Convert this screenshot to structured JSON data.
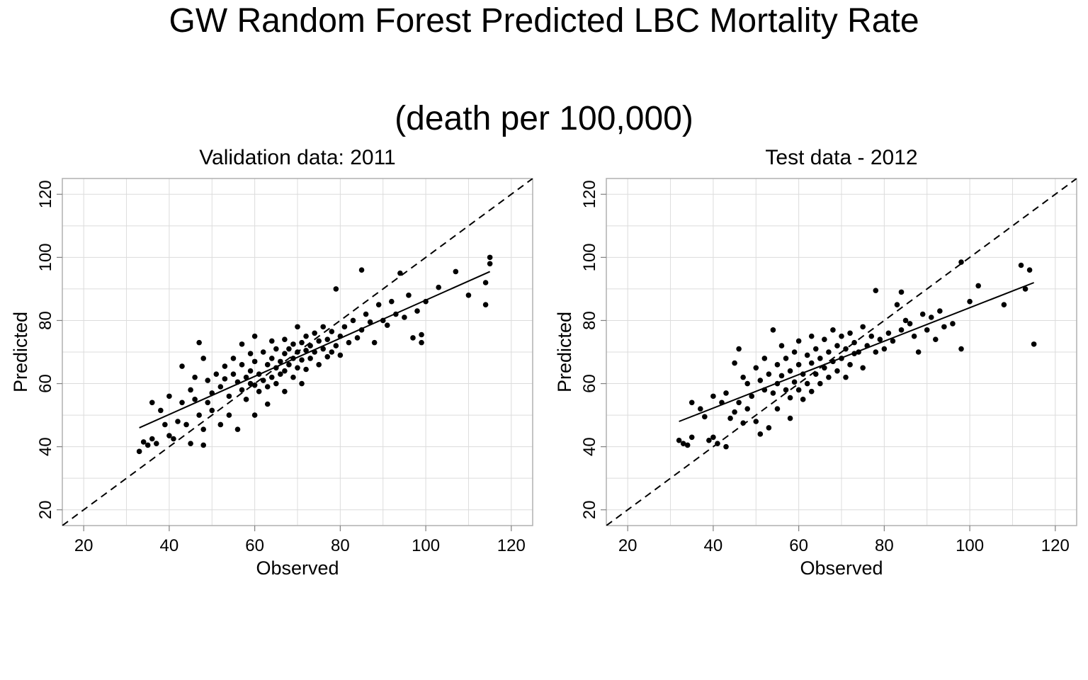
{
  "title": "GW Random Forest Predicted LBC Mortality Rate",
  "subtitle": "(death per 100,000)",
  "chart_data": [
    {
      "type": "scatter",
      "title": "Validation data: 2011",
      "xlabel": "Observed",
      "ylabel": "Predicted",
      "xlim": [
        15,
        125
      ],
      "ylim": [
        15,
        125
      ],
      "xticks": [
        20,
        40,
        60,
        80,
        100,
        120
      ],
      "yticks": [
        20,
        40,
        60,
        80,
        100,
        120
      ],
      "grid": true,
      "reference_line": {
        "style": "dashed",
        "slope": 1,
        "intercept": 0
      },
      "fit_line": {
        "style": "solid",
        "x": [
          33,
          115
        ],
        "y": [
          46,
          95.5
        ]
      },
      "points": [
        [
          33,
          38.5
        ],
        [
          34,
          41.5
        ],
        [
          35,
          40.5
        ],
        [
          36,
          54
        ],
        [
          36,
          42.5
        ],
        [
          37,
          41
        ],
        [
          38,
          51.5
        ],
        [
          39,
          47
        ],
        [
          40,
          56
        ],
        [
          40,
          43.5
        ],
        [
          41,
          42.5
        ],
        [
          42,
          48
        ],
        [
          43,
          65.5
        ],
        [
          43,
          54
        ],
        [
          44,
          47
        ],
        [
          45,
          58
        ],
        [
          45,
          41
        ],
        [
          46,
          62
        ],
        [
          46,
          55
        ],
        [
          47,
          73
        ],
        [
          47,
          50
        ],
        [
          48,
          68
        ],
        [
          48,
          45.5
        ],
        [
          48,
          40.5
        ],
        [
          49,
          61
        ],
        [
          49,
          54
        ],
        [
          50,
          57
        ],
        [
          50,
          51.5
        ],
        [
          51,
          63
        ],
        [
          52,
          59
        ],
        [
          52,
          47
        ],
        [
          53,
          65.5
        ],
        [
          53,
          61.5
        ],
        [
          54,
          56
        ],
        [
          54,
          50
        ],
        [
          55,
          68
        ],
        [
          55,
          63
        ],
        [
          56,
          60.5
        ],
        [
          56,
          45.5
        ],
        [
          57,
          72.5
        ],
        [
          57,
          66
        ],
        [
          57,
          58
        ],
        [
          58,
          62
        ],
        [
          58,
          55
        ],
        [
          59,
          69.5
        ],
        [
          59,
          64
        ],
        [
          59,
          60
        ],
        [
          60,
          75
        ],
        [
          60,
          67
        ],
        [
          60,
          59.5
        ],
        [
          60,
          50
        ],
        [
          61,
          63
        ],
        [
          61,
          57.5
        ],
        [
          62,
          70
        ],
        [
          62,
          61
        ],
        [
          63,
          66
        ],
        [
          63,
          59
        ],
        [
          63,
          53.5
        ],
        [
          64,
          73.5
        ],
        [
          64,
          68
        ],
        [
          64,
          62
        ],
        [
          65,
          71
        ],
        [
          65,
          65
        ],
        [
          65,
          60
        ],
        [
          66,
          67
        ],
        [
          66,
          63
        ],
        [
          67,
          74
        ],
        [
          67,
          69.5
        ],
        [
          67,
          64
        ],
        [
          67,
          57.5
        ],
        [
          68,
          71
        ],
        [
          68,
          66
        ],
        [
          69,
          72.5
        ],
        [
          69,
          68
        ],
        [
          69,
          62
        ],
        [
          70,
          78
        ],
        [
          70,
          70
        ],
        [
          70,
          65
        ],
        [
          71,
          73
        ],
        [
          71,
          67.5
        ],
        [
          71,
          60
        ],
        [
          72,
          75
        ],
        [
          72,
          70.5
        ],
        [
          72,
          64.5
        ],
        [
          73,
          72
        ],
        [
          73,
          68
        ],
        [
          74,
          76
        ],
        [
          74,
          70
        ],
        [
          75,
          73.5
        ],
        [
          75,
          66
        ],
        [
          76,
          78
        ],
        [
          76,
          71
        ],
        [
          77,
          74
        ],
        [
          77,
          68.5
        ],
        [
          78,
          76.5
        ],
        [
          78,
          70
        ],
        [
          79,
          90
        ],
        [
          79,
          72
        ],
        [
          80,
          75
        ],
        [
          80,
          69
        ],
        [
          81,
          78
        ],
        [
          82,
          73
        ],
        [
          83,
          80
        ],
        [
          84,
          74.5
        ],
        [
          85,
          96
        ],
        [
          85,
          77
        ],
        [
          86,
          82
        ],
        [
          87,
          79.5
        ],
        [
          88,
          73
        ],
        [
          89,
          85
        ],
        [
          90,
          80
        ],
        [
          91,
          78.5
        ],
        [
          92,
          86
        ],
        [
          93,
          82
        ],
        [
          94,
          95
        ],
        [
          95,
          81
        ],
        [
          96,
          88
        ],
        [
          97,
          74.5
        ],
        [
          98,
          83
        ],
        [
          99,
          75.5
        ],
        [
          99,
          73
        ],
        [
          100,
          86
        ],
        [
          103,
          90.5
        ],
        [
          107,
          95.5
        ],
        [
          110,
          88
        ],
        [
          114,
          92
        ],
        [
          114,
          85
        ],
        [
          115,
          100
        ],
        [
          115,
          98
        ]
      ]
    },
    {
      "type": "scatter",
      "title": "Test data - 2012",
      "xlabel": "Observed",
      "ylabel": "Predicted",
      "xlim": [
        15,
        125
      ],
      "ylim": [
        15,
        125
      ],
      "xticks": [
        20,
        40,
        60,
        80,
        100,
        120
      ],
      "yticks": [
        20,
        40,
        60,
        80,
        100,
        120
      ],
      "grid": true,
      "reference_line": {
        "style": "dashed",
        "slope": 1,
        "intercept": 0
      },
      "fit_line": {
        "style": "solid",
        "x": [
          32,
          115
        ],
        "y": [
          48,
          92
        ]
      },
      "points": [
        [
          32,
          42
        ],
        [
          33,
          41
        ],
        [
          34,
          40.5
        ],
        [
          35,
          54
        ],
        [
          35,
          43
        ],
        [
          37,
          52
        ],
        [
          38,
          49.5
        ],
        [
          39,
          42
        ],
        [
          40,
          56
        ],
        [
          40,
          43
        ],
        [
          41,
          41
        ],
        [
          42,
          54
        ],
        [
          43,
          57
        ],
        [
          43,
          40
        ],
        [
          44,
          49
        ],
        [
          45,
          51
        ],
        [
          45,
          66.5
        ],
        [
          46,
          71
        ],
        [
          46,
          54
        ],
        [
          47,
          62
        ],
        [
          47,
          47.5
        ],
        [
          48,
          60
        ],
        [
          48,
          52
        ],
        [
          49,
          56
        ],
        [
          50,
          65
        ],
        [
          50,
          48
        ],
        [
          51,
          61
        ],
        [
          51,
          44
        ],
        [
          52,
          68
        ],
        [
          52,
          58
        ],
        [
          53,
          63
        ],
        [
          53,
          46
        ],
        [
          54,
          77
        ],
        [
          54,
          57
        ],
        [
          55,
          66
        ],
        [
          55,
          60
        ],
        [
          55,
          52
        ],
        [
          56,
          72
        ],
        [
          56,
          62.5
        ],
        [
          57,
          68
        ],
        [
          57,
          58
        ],
        [
          58,
          64
        ],
        [
          58,
          55.5
        ],
        [
          58,
          49
        ],
        [
          59,
          70
        ],
        [
          59,
          60.5
        ],
        [
          60,
          73.5
        ],
        [
          60,
          66
        ],
        [
          60,
          58
        ],
        [
          61,
          63
        ],
        [
          61,
          55
        ],
        [
          62,
          69
        ],
        [
          62,
          60
        ],
        [
          63,
          75
        ],
        [
          63,
          66.5
        ],
        [
          63,
          57.5
        ],
        [
          64,
          71
        ],
        [
          64,
          63
        ],
        [
          65,
          68
        ],
        [
          65,
          60
        ],
        [
          66,
          74
        ],
        [
          66,
          65
        ],
        [
          67,
          70
        ],
        [
          67,
          62
        ],
        [
          68,
          77
        ],
        [
          68,
          67
        ],
        [
          69,
          72
        ],
        [
          69,
          64
        ],
        [
          70,
          75
        ],
        [
          70,
          68
        ],
        [
          71,
          71
        ],
        [
          71,
          62
        ],
        [
          72,
          76
        ],
        [
          72,
          66
        ],
        [
          73,
          73
        ],
        [
          73,
          69.5
        ],
        [
          74,
          70
        ],
        [
          75,
          78
        ],
        [
          75,
          65
        ],
        [
          76,
          72
        ],
        [
          77,
          75
        ],
        [
          78,
          89.5
        ],
        [
          78,
          70
        ],
        [
          79,
          74
        ],
        [
          80,
          71
        ],
        [
          81,
          76
        ],
        [
          82,
          73.5
        ],
        [
          83,
          85
        ],
        [
          84,
          89
        ],
        [
          84,
          77
        ],
        [
          85,
          80
        ],
        [
          86,
          79
        ],
        [
          87,
          75
        ],
        [
          88,
          70
        ],
        [
          89,
          82
        ],
        [
          90,
          77
        ],
        [
          91,
          81
        ],
        [
          92,
          74
        ],
        [
          93,
          83
        ],
        [
          94,
          78
        ],
        [
          96,
          79
        ],
        [
          98,
          98.5
        ],
        [
          98,
          71
        ],
        [
          100,
          86
        ],
        [
          102,
          91
        ],
        [
          108,
          85
        ],
        [
          112,
          97.5
        ],
        [
          113,
          90
        ],
        [
          114,
          96
        ],
        [
          115,
          72.5
        ]
      ]
    }
  ]
}
